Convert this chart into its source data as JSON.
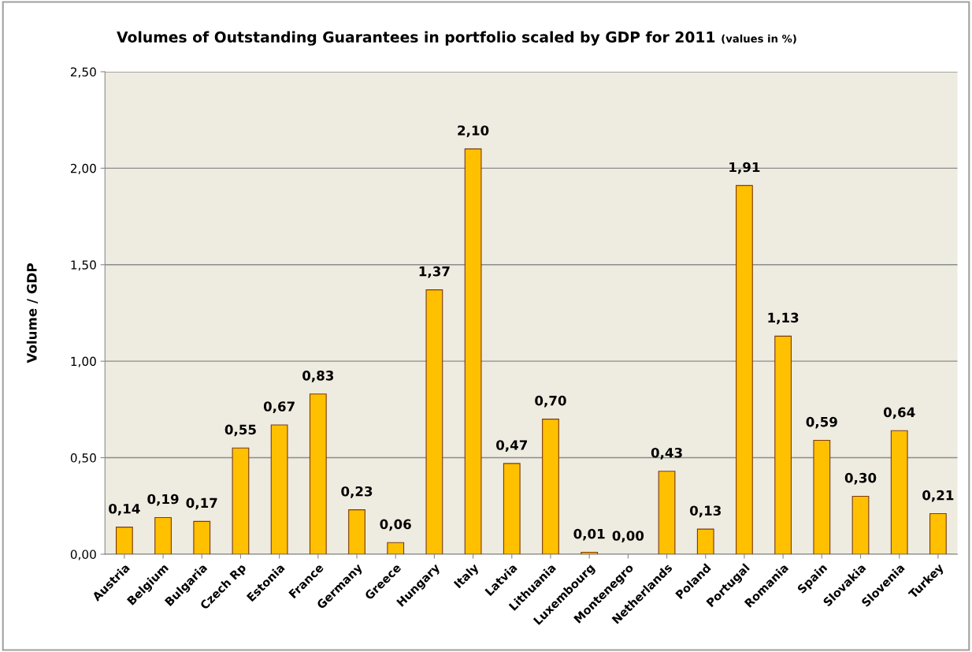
{
  "chart_data": {
    "type": "bar",
    "title": "Volumes of Outstanding Guarantees in portfolio scaled by GDP for 2011",
    "subtitle": "(values in %)",
    "ylabel": "Volume / GDP",
    "categories": [
      "Austria",
      "Belgium",
      "Bulgaria",
      "Czech Rp",
      "Estonia",
      "France",
      "Germany",
      "Greece",
      "Hungary",
      "Italy",
      "Latvia",
      "Lithuania",
      "Luxembourg",
      "Montenegro",
      "Netherlands",
      "Poland",
      "Portugal",
      "Romania",
      "Spain",
      "Slovakia",
      "Slovenia",
      "Turkey"
    ],
    "values": [
      0.14,
      0.19,
      0.17,
      0.55,
      0.67,
      0.83,
      0.23,
      0.06,
      1.37,
      2.1,
      0.47,
      0.7,
      0.01,
      0.0,
      0.43,
      0.13,
      1.91,
      1.13,
      0.59,
      0.3,
      0.64,
      0.21
    ],
    "value_labels": [
      "0,14",
      "0,19",
      "0,17",
      "0,55",
      "0,67",
      "0,83",
      "0,23",
      "0,06",
      "1,37",
      "2,10",
      "0,47",
      "0,70",
      "0,01",
      "0,00",
      "0,43",
      "0,13",
      "1,91",
      "1,13",
      "0,59",
      "0,30",
      "0,64",
      "0,21"
    ],
    "color": "#ffc000",
    "ylim": [
      0,
      2.5
    ],
    "yticks": [
      {
        "value": 0,
        "label": "0,00"
      },
      {
        "value": 0.5,
        "label": "0,50"
      },
      {
        "value": 1,
        "label": "1,00"
      },
      {
        "value": 1.5,
        "label": "1,50"
      },
      {
        "value": 2,
        "label": "2,00"
      },
      {
        "value": 2.5,
        "label": "2,50"
      }
    ],
    "grid": "y",
    "legend": false
  }
}
